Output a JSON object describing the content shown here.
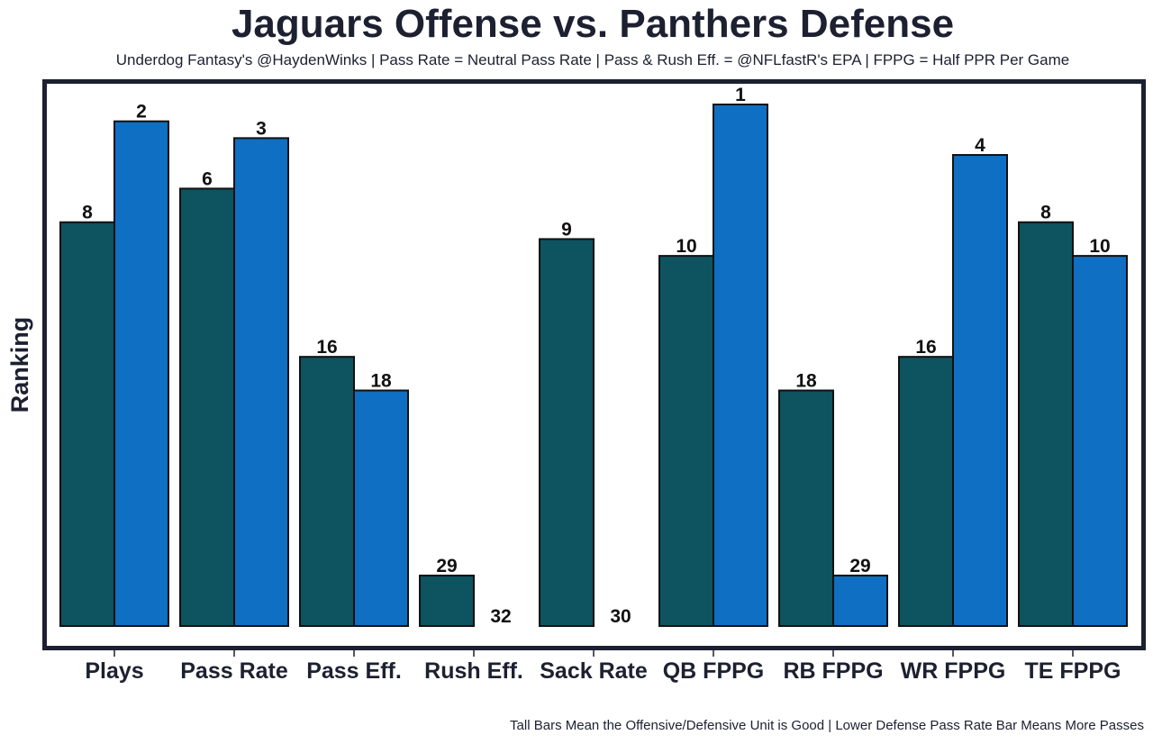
{
  "title": "Jaguars Offense vs. Panthers Defense",
  "subtitle": "Underdog Fantasy's @HaydenWinks | Pass Rate = Neutral Pass Rate | Pass & Rush Eff. = @NFLfastR's EPA | FPPG = Half PPR Per Game",
  "footer": "Tall Bars Mean the Offensive/Defensive Unit is Good | Lower Defense Pass Rate Bar Means More Passes",
  "colors": {
    "offense": "#0d5360",
    "defense": "#0f6fc2",
    "frame": "#1c2030",
    "text": "#111111"
  },
  "chart_data": {
    "type": "bar",
    "title": "Jaguars Offense vs. Panthers Defense",
    "xlabel": "",
    "ylabel": "Ranking",
    "categories": [
      "Plays",
      "Pass Rate",
      "Pass Eff.",
      "Rush Eff.",
      "Sack Rate",
      "QB FPPG",
      "RB FPPG",
      "WR FPPG",
      "TE FPPG"
    ],
    "series": [
      {
        "name": "Jaguars Offense",
        "ranks": [
          8,
          6,
          16,
          29,
          9,
          10,
          18,
          16,
          8
        ],
        "bar_values": [
          24,
          26,
          16,
          3,
          23,
          22,
          14,
          16,
          24
        ]
      },
      {
        "name": "Panthers Defense",
        "ranks": [
          2,
          3,
          18,
          32,
          30,
          1,
          29,
          4,
          10
        ],
        "bar_values": [
          30,
          29,
          14,
          0,
          0,
          31,
          3,
          28,
          22
        ]
      }
    ],
    "ylim": [
      0,
      31
    ],
    "y_ticks_shown": false,
    "grid": false,
    "legend": "none"
  }
}
